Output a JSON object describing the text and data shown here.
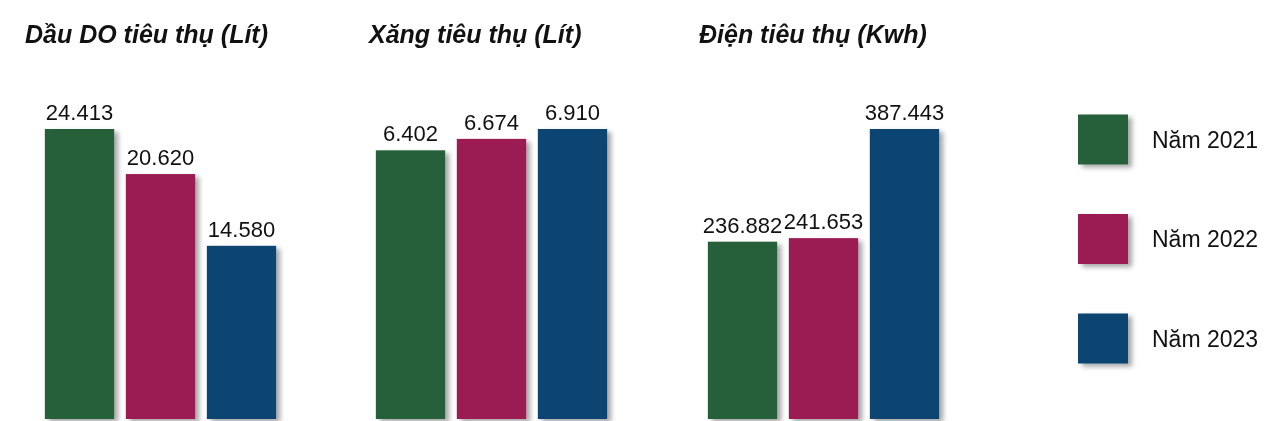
{
  "chart_data": [
    {
      "type": "bar",
      "title": "Dầu DO tiêu thụ (Lít)",
      "categories": [
        null
      ],
      "legend": false,
      "series": [
        {
          "color": "#27603a",
          "values": [
            24413
          ],
          "value_labels": [
            "24.413"
          ]
        },
        {
          "color": "#9a1c52",
          "values": [
            20620
          ],
          "value_labels": [
            "20.620"
          ]
        },
        {
          "color": "#0c4572",
          "values": [
            14580
          ],
          "value_labels": [
            "14.580"
          ]
        }
      ]
    },
    {
      "type": "bar",
      "title": "Xăng tiêu thụ (Lít)",
      "categories": [
        null
      ],
      "legend": false,
      "series": [
        {
          "color": "#27603a",
          "values": [
            6402
          ],
          "value_labels": [
            "6.402"
          ]
        },
        {
          "color": "#9a1c52",
          "values": [
            6674
          ],
          "value_labels": [
            "6.674"
          ]
        },
        {
          "color": "#0c4572",
          "values": [
            6910
          ],
          "value_labels": [
            "6.910"
          ]
        }
      ]
    },
    {
      "type": "bar",
      "title": "Điện tiêu thụ (Kwh)",
      "categories": [
        null
      ],
      "legend": "right",
      "series": [
        {
          "name": "Năm 2021",
          "color": "#27603a",
          "values": [
            236882
          ],
          "value_labels": [
            "236.882"
          ]
        },
        {
          "name": "Năm 2022",
          "color": "#9a1c52",
          "values": [
            241653
          ],
          "value_labels": [
            "241.653"
          ]
        },
        {
          "name": "Năm 2023",
          "color": "#0c4572",
          "values": [
            387443
          ],
          "value_labels": [
            "387.443"
          ]
        }
      ]
    }
  ]
}
